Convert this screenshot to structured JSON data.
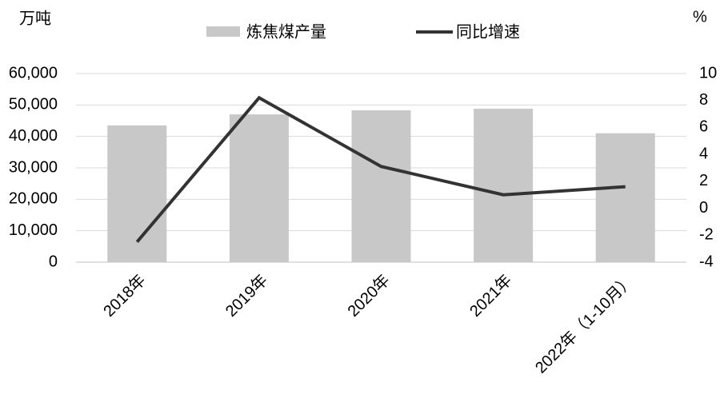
{
  "chart_data": {
    "type": "bar-line",
    "y_label": "万吨",
    "y2_label": "%",
    "categories": [
      "2018年",
      "2019年",
      "2020年",
      "2021年",
      "2022年（1-10月）"
    ],
    "series": [
      {
        "name": "炼焦煤产量",
        "type": "bar",
        "color": "#c8c8c8",
        "values": [
          43500,
          47000,
          48300,
          48800,
          41000
        ]
      },
      {
        "name": "同比增速",
        "type": "line",
        "axis": "y2",
        "color": "#333333",
        "values": [
          -2.5,
          8.2,
          3.1,
          1.0,
          1.6
        ]
      }
    ],
    "ylim": [
      0,
      60000
    ],
    "yticks": [
      0,
      {
        "value": 10000,
        "label": "10,000"
      },
      {
        "value": 20000,
        "label": "20,000"
      },
      {
        "value": 30000,
        "label": "30,000"
      },
      {
        "value": 40000,
        "label": "40,000"
      },
      {
        "value": 50000,
        "label": "50,000"
      },
      {
        "value": 60000,
        "label": "60,000"
      }
    ],
    "y2lim": [
      -4,
      10
    ],
    "y2ticks": [
      -4,
      -2,
      0,
      2,
      4,
      6,
      8,
      10
    ],
    "grid": true
  }
}
